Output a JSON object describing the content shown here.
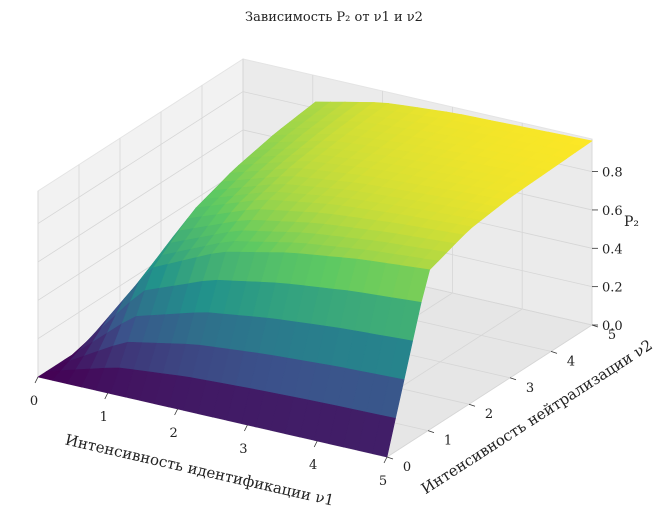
{
  "chart_data": {
    "type": "surface3d",
    "title": "Зависимость P₂ от ν1 и ν2",
    "xlabel": "Интенсивность идентификации ν1",
    "ylabel": "Интенсивность нейтрализации ν2",
    "zlabel": "P₂",
    "xlim": [
      0,
      5
    ],
    "ylim": [
      0,
      5
    ],
    "zlim": [
      0,
      0.9
    ],
    "x_ticks": [
      "0",
      "1",
      "2",
      "3",
      "4",
      "5"
    ],
    "y_ticks": [
      "0",
      "1",
      "2",
      "3",
      "4",
      "5"
    ],
    "z_ticks": [
      "0.0",
      "0.2",
      "0.4",
      "0.6",
      "0.8"
    ],
    "x_values": [
      0,
      1,
      2,
      3,
      4,
      5
    ],
    "y_values": [
      0,
      1,
      2,
      3,
      4,
      5
    ],
    "z_values": [
      [
        0.0,
        0.0,
        0.0,
        0.0,
        0.0,
        0.0
      ],
      [
        0.0,
        0.5,
        0.67,
        0.75,
        0.8,
        0.83
      ],
      [
        0.0,
        0.67,
        0.8,
        0.86,
        0.89,
        0.91
      ],
      [
        0.0,
        0.75,
        0.86,
        0.9,
        0.92,
        0.94
      ],
      [
        0.0,
        0.8,
        0.89,
        0.92,
        0.94,
        0.95
      ],
      [
        0.0,
        0.83,
        0.91,
        0.94,
        0.95,
        0.96
      ]
    ],
    "colormap": "viridis",
    "grid": true
  }
}
